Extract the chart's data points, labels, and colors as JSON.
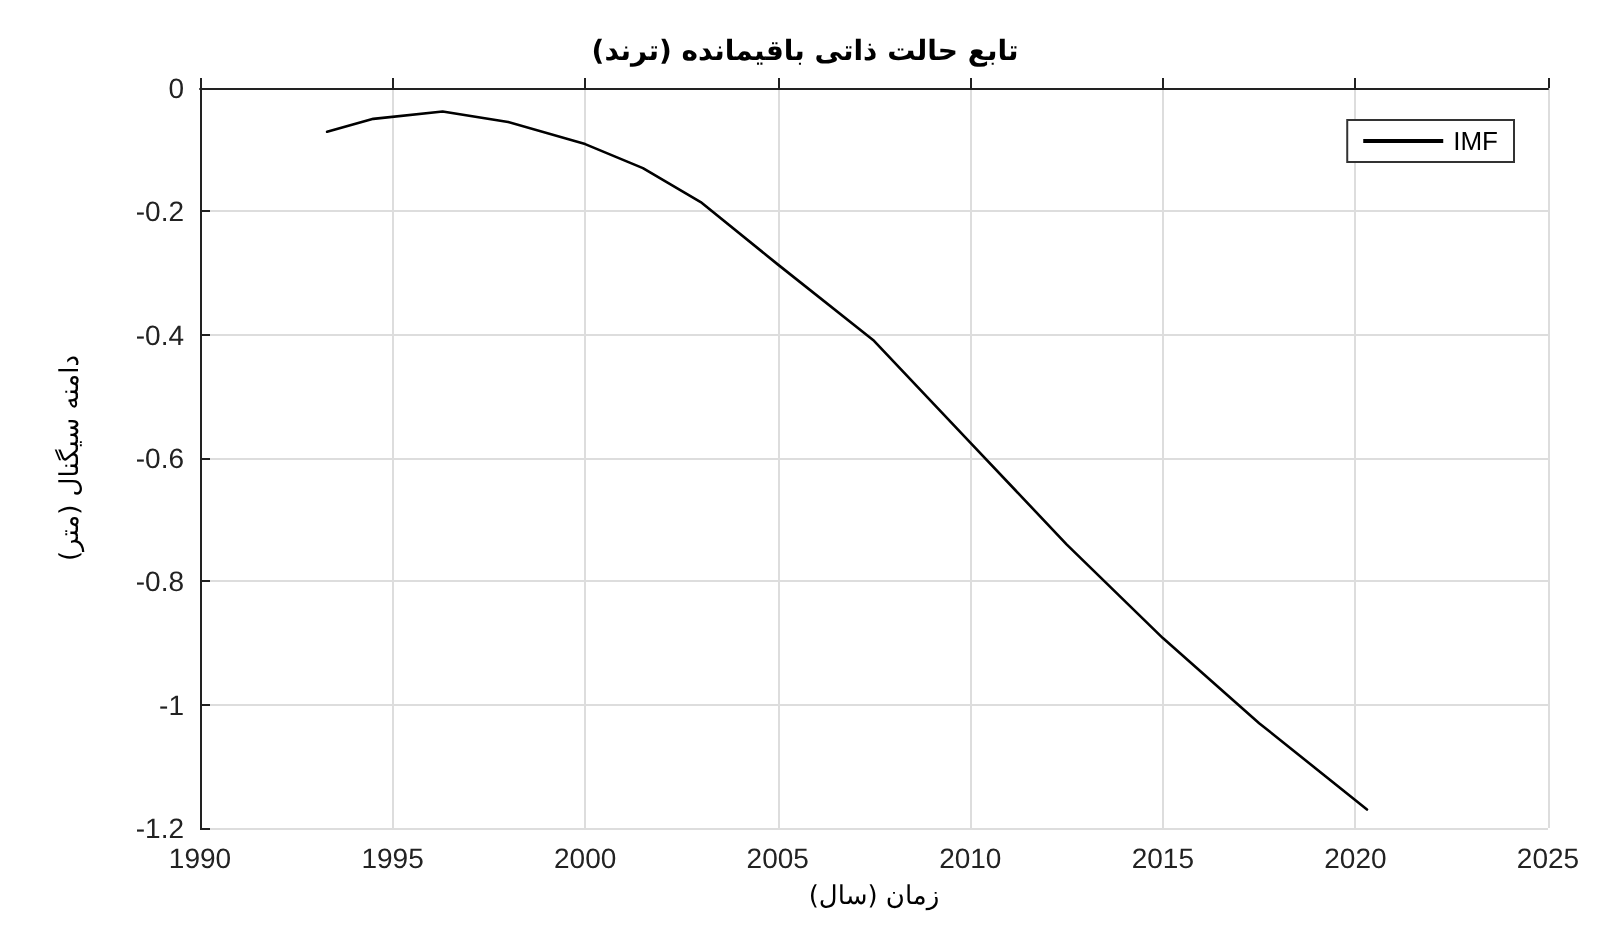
{
  "chart_data": {
    "type": "line",
    "title": "تابع حالت ذاتی باقیمانده (ترند)",
    "xlabel": "زمان (سال)",
    "ylabel": "دامنه سیگنال (متر)",
    "xlim": [
      1990,
      2025
    ],
    "xticks": [
      1990,
      1995,
      2000,
      2005,
      2010,
      2015,
      2020,
      2025
    ],
    "ylim": [
      -1.2,
      0
    ],
    "yticks": [
      -1.2,
      -1,
      -0.8,
      -0.6,
      -0.4,
      -0.2,
      0
    ],
    "grid": true,
    "legend": "top right",
    "marker": "none",
    "line_style": "solid",
    "series": [
      {
        "name": "IMF",
        "color": "#000000",
        "x": [
          1993.3,
          1994.5,
          1996.3,
          1998,
          2000,
          2001.5,
          2003,
          2005,
          2007.5,
          2010,
          2012.5,
          2015,
          2017.5,
          2020.3
        ],
        "values": [
          -0.071,
          -0.05,
          -0.038,
          -0.055,
          -0.091,
          -0.13,
          -0.185,
          -0.286,
          -0.41,
          -0.575,
          -0.74,
          -0.892,
          -1.03,
          -1.17
        ]
      }
    ]
  }
}
